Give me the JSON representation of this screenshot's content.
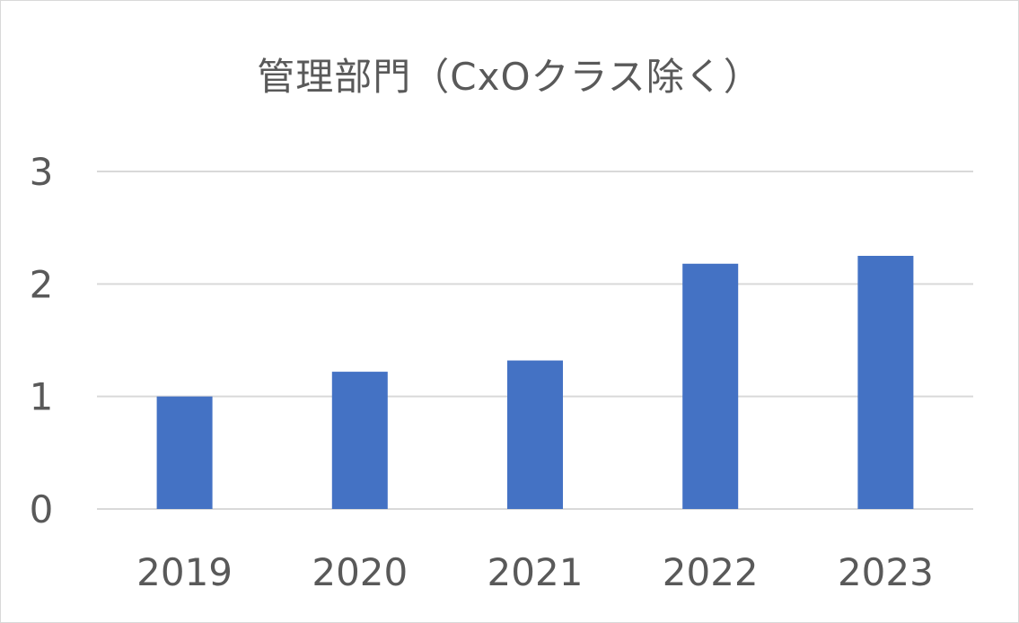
{
  "chart_data": {
    "type": "bar",
    "title": "管理部門（CxOクラス除く）",
    "categories": [
      "2019",
      "2020",
      "2021",
      "2022",
      "2023"
    ],
    "values": [
      1.0,
      1.22,
      1.32,
      2.18,
      2.25
    ],
    "y_ticks": [
      "0",
      "1",
      "2",
      "3"
    ],
    "ylim": [
      0,
      3
    ],
    "grid": true,
    "legend": "none",
    "colors": {
      "bar": "#4472c4",
      "grid": "#d9d9d9",
      "text": "#595959"
    }
  }
}
